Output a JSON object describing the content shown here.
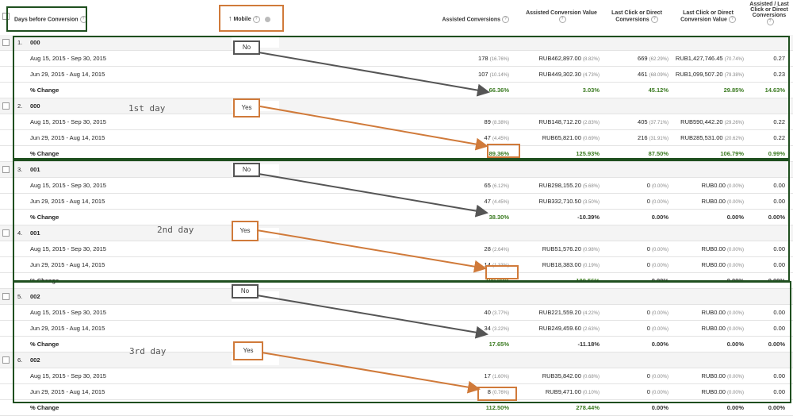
{
  "headers": {
    "dim1": "Days before Conversion",
    "dim2": "Mobile",
    "sort_arrow": "↑",
    "c1": "Assisted Conversions",
    "c2": "Assisted Conversion Value",
    "c3": "Last Click or Direct Conversions",
    "c4": "Last Click or Direct Conversion Value",
    "c5": "Assisted / Last Click or Direct Conversions"
  },
  "groups": [
    {
      "idx": "1.",
      "dim1": "000",
      "mobile": "No",
      "rows": [
        {
          "label": "Aug 15, 2015 - Sep 30, 2015",
          "c1": "178",
          "c1p": "(16.76%)",
          "c2": "RUB462,897.00",
          "c2p": "(8.82%)",
          "c3": "669",
          "c3p": "(62.29%)",
          "c4": "RUB1,427,746.45",
          "c4p": "(70.74%)",
          "c5": "0.27"
        },
        {
          "label": "Jun 29, 2015 - Aug 14, 2015",
          "c1": "107",
          "c1p": "(10.14%)",
          "c2": "RUB449,302.30",
          "c2p": "(4.73%)",
          "c3": "461",
          "c3p": "(68.09%)",
          "c4": "RUB1,099,507.20",
          "c4p": "(79.38%)",
          "c5": "0.23"
        }
      ],
      "change": {
        "label": "% Change",
        "c1": "66.36%",
        "c2": "3.03%",
        "c3": "45.12%",
        "c4": "29.85%",
        "c5": "14.63%"
      }
    },
    {
      "idx": "2.",
      "dim1": "000",
      "mobile": "Yes",
      "rows": [
        {
          "label": "Aug 15, 2015 - Sep 30, 2015",
          "c1": "89",
          "c1p": "(8.38%)",
          "c2": "RUB148,712.20",
          "c2p": "(2.83%)",
          "c3": "405",
          "c3p": "(37.71%)",
          "c4": "RUB590,442.20",
          "c4p": "(29.26%)",
          "c5": "0.22"
        },
        {
          "label": "Jun 29, 2015 - Aug 14, 2015",
          "c1": "47",
          "c1p": "(4.45%)",
          "c2": "RUB65,821.00",
          "c2p": "(0.69%)",
          "c3": "216",
          "c3p": "(31.91%)",
          "c4": "RUB285,531.00",
          "c4p": "(20.62%)",
          "c5": "0.22"
        }
      ],
      "change": {
        "label": "% Change",
        "c1": "89.36%",
        "c2": "125.93%",
        "c3": "87.50%",
        "c4": "106.79%",
        "c5": "0.99%"
      }
    },
    {
      "idx": "3.",
      "dim1": "001",
      "mobile": "No",
      "rows": [
        {
          "label": "Aug 15, 2015 - Sep 30, 2015",
          "c1": "65",
          "c1p": "(6.12%)",
          "c2": "RUB298,155.20",
          "c2p": "(5.68%)",
          "c3": "0",
          "c3p": "(0.00%)",
          "c4": "RUB0.00",
          "c4p": "(0.00%)",
          "c5": "0.00"
        },
        {
          "label": "Jun 29, 2015 - Aug 14, 2015",
          "c1": "47",
          "c1p": "(4.45%)",
          "c2": "RUB332,710.50",
          "c2p": "(3.50%)",
          "c3": "0",
          "c3p": "(0.00%)",
          "c4": "RUB0.00",
          "c4p": "(0.00%)",
          "c5": "0.00"
        }
      ],
      "change": {
        "label": "% Change",
        "c1": "38.30%",
        "c2": "-10.39%",
        "c3": "0.00%",
        "c4": "0.00%",
        "c5": "0.00%"
      }
    },
    {
      "idx": "4.",
      "dim1": "001",
      "mobile": "Yes",
      "rows": [
        {
          "label": "Aug 15, 2015 - Sep 30, 2015",
          "c1": "28",
          "c1p": "(2.64%)",
          "c2": "RUB51,576.20",
          "c2p": "(0.98%)",
          "c3": "0",
          "c3p": "(0.00%)",
          "c4": "RUB0.00",
          "c4p": "(0.00%)",
          "c5": "0.00"
        },
        {
          "label": "Jun 29, 2015 - Aug 14, 2015",
          "c1": "14",
          "c1p": "(1.33%)",
          "c2": "RUB18,383.00",
          "c2p": "(0.19%)",
          "c3": "0",
          "c3p": "(0.00%)",
          "c4": "RUB0.00",
          "c4p": "(0.00%)",
          "c5": "0.00"
        }
      ],
      "change": {
        "label": "% Change",
        "c1": "100.00%",
        "c2": "180.56%",
        "c3": "0.00%",
        "c4": "0.00%",
        "c5": "0.00%"
      }
    },
    {
      "idx": "5.",
      "dim1": "002",
      "mobile": "No",
      "rows": [
        {
          "label": "Aug 15, 2015 - Sep 30, 2015",
          "c1": "40",
          "c1p": "(3.77%)",
          "c2": "RUB221,559.20",
          "c2p": "(4.22%)",
          "c3": "0",
          "c3p": "(0.00%)",
          "c4": "RUB0.00",
          "c4p": "(0.00%)",
          "c5": "0.00"
        },
        {
          "label": "Jun 29, 2015 - Aug 14, 2015",
          "c1": "34",
          "c1p": "(3.22%)",
          "c2": "RUB249,459.60",
          "c2p": "(2.63%)",
          "c3": "0",
          "c3p": "(0.00%)",
          "c4": "RUB0.00",
          "c4p": "(0.00%)",
          "c5": "0.00"
        }
      ],
      "change": {
        "label": "% Change",
        "c1": "17.65%",
        "c2": "-11.18%",
        "c3": "0.00%",
        "c4": "0.00%",
        "c5": "0.00%"
      }
    },
    {
      "idx": "6.",
      "dim1": "002",
      "mobile": "Yes",
      "rows": [
        {
          "label": "Aug 15, 2015 - Sep 30, 2015",
          "c1": "17",
          "c1p": "(1.60%)",
          "c2": "RUB35,842.00",
          "c2p": "(0.68%)",
          "c3": "0",
          "c3p": "(0.00%)",
          "c4": "RUB0.00",
          "c4p": "(0.00%)",
          "c5": "0.00"
        },
        {
          "label": "Jun 29, 2015 - Aug 14, 2015",
          "c1": "8",
          "c1p": "(0.76%)",
          "c2": "RUB9,471.00",
          "c2p": "(0.10%)",
          "c3": "0",
          "c3p": "(0.00%)",
          "c4": "RUB0.00",
          "c4p": "(0.00%)",
          "c5": "0.00"
        }
      ],
      "change": {
        "label": "% Change",
        "c1": "112.50%",
        "c2": "278.44%",
        "c3": "0.00%",
        "c4": "0.00%",
        "c5": "0.00%"
      }
    }
  ],
  "annotations": {
    "day1": "1st day",
    "day2": "2nd day",
    "day3": "3rd day"
  },
  "colors": {
    "green_box": "#1f4f1f",
    "orange": "#d07a3a",
    "grey_arrow": "#555555",
    "positive": "#3a7a20"
  }
}
